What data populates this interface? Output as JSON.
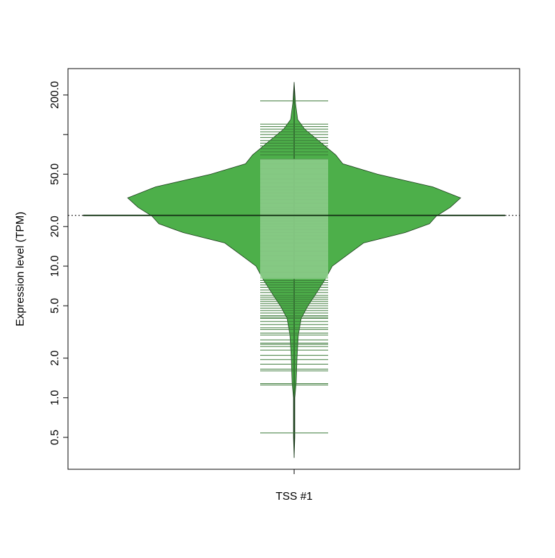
{
  "chart_data": {
    "type": "beanplot",
    "categories": [
      "TSS #1"
    ],
    "y_label": "Expression level (TPM)",
    "log_y": true,
    "ylim": [
      0.286,
      317
    ],
    "yticks": [
      0.5,
      {
        "value": 1,
        "label": "1.0"
      },
      {
        "value": 2,
        "label": "2.0"
      },
      {
        "value": 5,
        "label": "5.0"
      },
      {
        "value": 10,
        "label": "10.0"
      },
      {
        "value": 20,
        "label": "20.0"
      },
      {
        "value": 50,
        "label": "50.0"
      },
      {
        "value": 200,
        "label": "200.0"
      }
    ],
    "minor_yticks": [
      100
    ],
    "color": "#4daf4a",
    "box_color": "#b3dfb0",
    "line_color": "#3b7a38",
    "median": 24.3,
    "overall_line": 24.3,
    "box": [
      8,
      65
    ],
    "density": {
      "y": [
        0.35,
        0.5,
        1,
        1.3,
        2,
        3,
        4,
        5,
        6,
        8,
        10,
        12,
        15,
        18,
        21,
        24,
        28,
        33,
        40,
        50,
        60,
        70,
        90,
        110,
        130,
        173,
        250
      ],
      "width": [
        0,
        0.004,
        0.004,
        0.012,
        0.017,
        0.025,
        0.042,
        0.083,
        0.125,
        0.188,
        0.229,
        0.313,
        0.417,
        0.667,
        0.813,
        0.854,
        0.938,
        1.0,
        0.833,
        0.5,
        0.292,
        0.25,
        0.146,
        0.063,
        0.021,
        0.008,
        0
      ]
    },
    "bean_lines": [
      0.54,
      1.25,
      1.28,
      1.6,
      1.65,
      1.8,
      1.95,
      2.1,
      2.3,
      2.45,
      2.55,
      2.6,
      2.75,
      3.0,
      3.1,
      3.3,
      3.4,
      3.6,
      3.8,
      4.0,
      4.1,
      4.2,
      4.4,
      4.6,
      4.8,
      5.0,
      5.2,
      5.4,
      5.6,
      5.8,
      6.0,
      6.3,
      6.6,
      6.9,
      7.2,
      7.5,
      7.8,
      8.2,
      9,
      10,
      11,
      12,
      13,
      14,
      15,
      16,
      17,
      18,
      19,
      20,
      21,
      22,
      23,
      24,
      25,
      26,
      27,
      28,
      30,
      32,
      34,
      36,
      38,
      40,
      43,
      46,
      50,
      55,
      60,
      65,
      70,
      74,
      78,
      82,
      86,
      90,
      95,
      100,
      105,
      110,
      115,
      120,
      180
    ]
  }
}
